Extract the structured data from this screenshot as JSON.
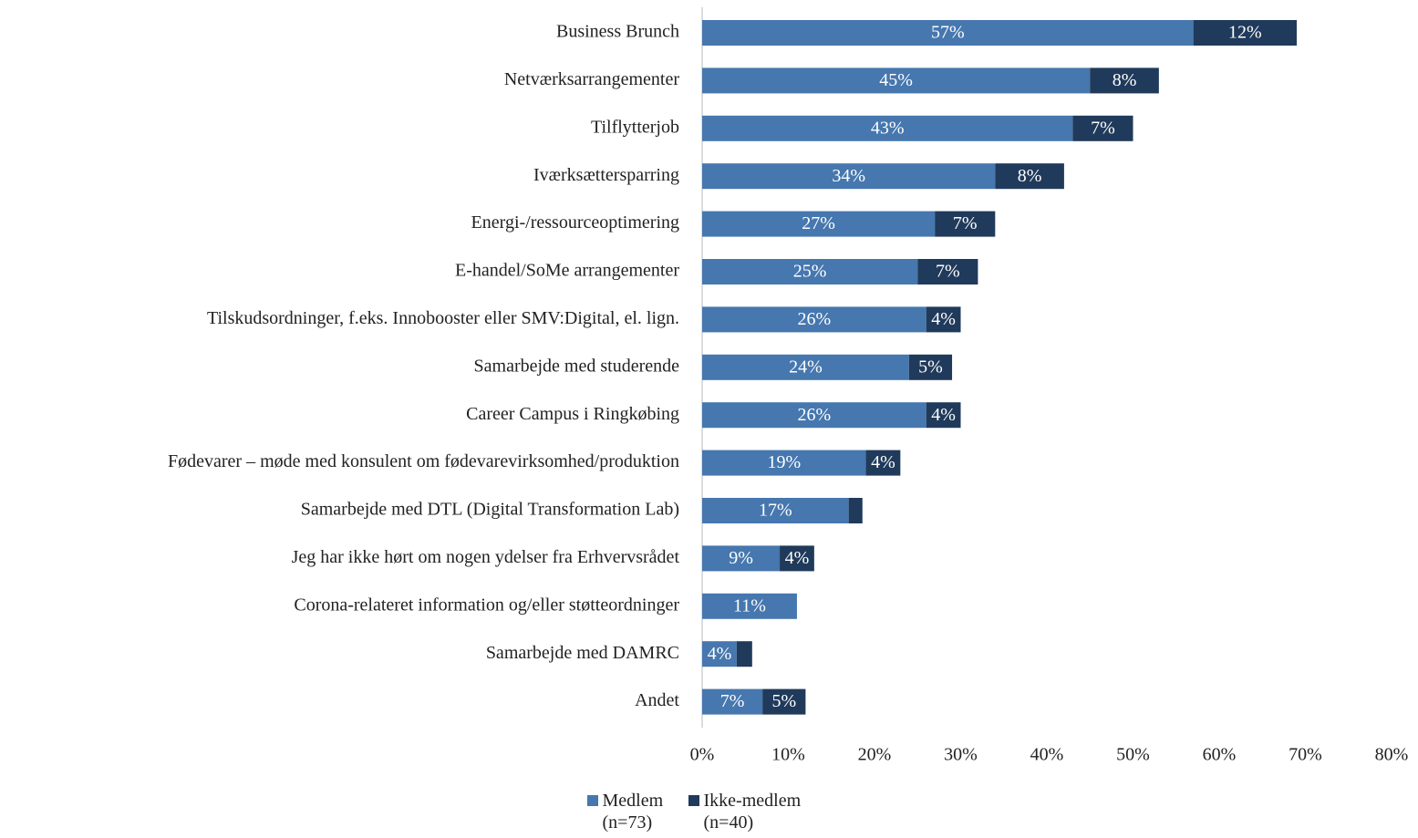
{
  "chart_data": {
    "type": "stacked-barh",
    "categories": [
      "Business Brunch",
      "Netværksarrangementer",
      "Tilflytterjob",
      "Iværksættersparring",
      "Energi-/ressourceoptimering",
      "E-handel/SoMe arrangementer",
      "Tilskudsordninger, f.eks. Innobooster eller SMV:Digital, el. lign.",
      "Samarbejde med studerende",
      "Career Campus i Ringkøbing",
      "Fødevarer – møde med konsulent om fødevarevirksomhed/produktion",
      "Samarbejde med DTL (Digital Transformation Lab)",
      "Jeg har ikke hørt om nogen ydelser fra Erhvervsrådet",
      "Corona-relateret information og/eller støtteordninger",
      "Samarbejde med DAMRC",
      "Andet"
    ],
    "series": [
      {
        "name": "Medlem (n=73)",
        "color": "#4677ae",
        "values": [
          57,
          45,
          43,
          34,
          27,
          25,
          26,
          24,
          26,
          19,
          17,
          9,
          11,
          4,
          7
        ],
        "value_labels": [
          "57%",
          "45%",
          "43%",
          "34%",
          "27%",
          "25%",
          "26%",
          "24%",
          "26%",
          "19%",
          "17%",
          "9%",
          "11%",
          "4%",
          "7%"
        ]
      },
      {
        "name": "Ikke-medlem (n=40)",
        "color": "#203a5b",
        "values": [
          12,
          8,
          7,
          8,
          7,
          7,
          4,
          5,
          4,
          4,
          1.6,
          4,
          null,
          1.8,
          5
        ],
        "value_labels": [
          "12%",
          "8%",
          "7%",
          "8%",
          "7%",
          "7%",
          "4%",
          "5%",
          "4%",
          "4%",
          null,
          "4%",
          null,
          null,
          "5%"
        ]
      }
    ],
    "xlim": [
      0,
      80
    ],
    "xticks": [
      {
        "value": 0,
        "label": "0%"
      },
      {
        "value": 10,
        "label": "10%"
      },
      {
        "value": 20,
        "label": "20%"
      },
      {
        "value": 30,
        "label": "30%"
      },
      {
        "value": 40,
        "label": "40%"
      },
      {
        "value": 50,
        "label": "50%"
      },
      {
        "value": 60,
        "label": "60%"
      },
      {
        "value": 70,
        "label": "70%"
      },
      {
        "value": 80,
        "label": "80%"
      }
    ],
    "legend": "bottom"
  }
}
